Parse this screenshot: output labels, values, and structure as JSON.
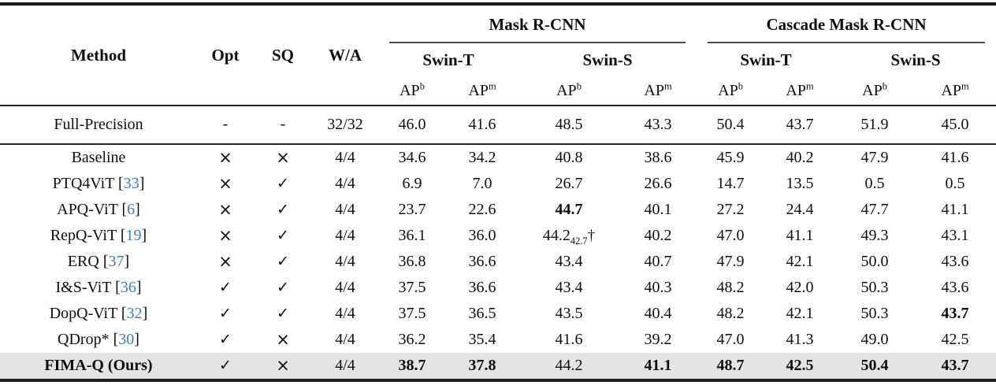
{
  "columns": {
    "method": "Method",
    "opt": "Opt",
    "sq": "SQ",
    "wa": "W/A"
  },
  "groups": [
    {
      "label": "Mask R-CNN"
    },
    {
      "label": "Cascade Mask R-CNN"
    }
  ],
  "backbones": [
    "Swin-T",
    "Swin-S",
    "Swin-T",
    "Swin-S"
  ],
  "metric": {
    "base": "AP",
    "sups": [
      "b",
      "m"
    ]
  },
  "marks": {
    "check": "✓",
    "cross": "×",
    "dash": "-"
  },
  "colors": {
    "citation": "#3d7dbf",
    "highlight_bg": "#e4e4e4"
  },
  "rows": [
    {
      "method": "Full-Precision",
      "opt": "dash",
      "sq": "dash",
      "wa": "32/32",
      "section": "fp",
      "cells": [
        {
          "v": "46.0"
        },
        {
          "v": "41.6"
        },
        {
          "v": "48.5"
        },
        {
          "v": "43.3"
        },
        {
          "v": "50.4"
        },
        {
          "v": "43.7"
        },
        {
          "v": "51.9"
        },
        {
          "v": "45.0"
        }
      ]
    },
    {
      "method": "Baseline",
      "opt": "cross",
      "sq": "cross",
      "wa": "4/4",
      "cells": [
        {
          "v": "34.6"
        },
        {
          "v": "34.2"
        },
        {
          "v": "40.8"
        },
        {
          "v": "38.6"
        },
        {
          "v": "45.9"
        },
        {
          "v": "40.2"
        },
        {
          "v": "47.9"
        },
        {
          "v": "41.6"
        }
      ]
    },
    {
      "method": "PTQ4ViT",
      "ref": "33",
      "opt": "cross",
      "sq": "check",
      "wa": "4/4",
      "cells": [
        {
          "v": "6.9"
        },
        {
          "v": "7.0"
        },
        {
          "v": "26.7"
        },
        {
          "v": "26.6"
        },
        {
          "v": "14.7"
        },
        {
          "v": "13.5"
        },
        {
          "v": "0.5"
        },
        {
          "v": "0.5"
        }
      ]
    },
    {
      "method": "APQ-ViT",
      "ref": "6",
      "opt": "cross",
      "sq": "check",
      "wa": "4/4",
      "cells": [
        {
          "v": "23.7"
        },
        {
          "v": "22.6"
        },
        {
          "v": "44.7",
          "bold": true
        },
        {
          "v": "40.1"
        },
        {
          "v": "27.2"
        },
        {
          "v": "24.4"
        },
        {
          "v": "47.7"
        },
        {
          "v": "41.1"
        }
      ]
    },
    {
      "method": "RepQ-ViT",
      "ref": "19",
      "opt": "cross",
      "sq": "check",
      "wa": "4/4",
      "cells": [
        {
          "v": "36.1"
        },
        {
          "v": "36.0"
        },
        {
          "v": "44.2",
          "sub": "42.7",
          "dagger": "†"
        },
        {
          "v": "40.2"
        },
        {
          "v": "47.0"
        },
        {
          "v": "41.1"
        },
        {
          "v": "49.3"
        },
        {
          "v": "43.1"
        }
      ]
    },
    {
      "method": "ERQ",
      "ref": "37",
      "opt": "cross",
      "sq": "check",
      "wa": "4/4",
      "cells": [
        {
          "v": "36.8"
        },
        {
          "v": "36.6"
        },
        {
          "v": "43.4"
        },
        {
          "v": "40.7"
        },
        {
          "v": "47.9"
        },
        {
          "v": "42.1"
        },
        {
          "v": "50.0"
        },
        {
          "v": "43.6"
        }
      ]
    },
    {
      "method": "I&S-ViT",
      "ref": "36",
      "opt": "check",
      "sq": "check",
      "wa": "4/4",
      "cells": [
        {
          "v": "37.5"
        },
        {
          "v": "36.6"
        },
        {
          "v": "43.4"
        },
        {
          "v": "40.3"
        },
        {
          "v": "48.2"
        },
        {
          "v": "42.0"
        },
        {
          "v": "50.3"
        },
        {
          "v": "43.6"
        }
      ]
    },
    {
      "method": "DopQ-ViT",
      "ref": "32",
      "opt": "check",
      "sq": "check",
      "wa": "4/4",
      "cells": [
        {
          "v": "37.5"
        },
        {
          "v": "36.5"
        },
        {
          "v": "43.5"
        },
        {
          "v": "40.4"
        },
        {
          "v": "48.2"
        },
        {
          "v": "42.1"
        },
        {
          "v": "50.3"
        },
        {
          "v": "43.7",
          "bold": true
        }
      ]
    },
    {
      "method": "QDrop*",
      "ref": "30",
      "opt": "check",
      "sq": "cross",
      "wa": "4/4",
      "cells": [
        {
          "v": "36.2"
        },
        {
          "v": "35.4"
        },
        {
          "v": "41.6"
        },
        {
          "v": "39.2"
        },
        {
          "v": "47.0"
        },
        {
          "v": "41.3"
        },
        {
          "v": "49.0"
        },
        {
          "v": "42.5"
        }
      ]
    },
    {
      "method": "FIMA-Q (Ours)",
      "opt": "check",
      "sq": "cross",
      "wa": "4/4",
      "bold": true,
      "highlight": true,
      "cells": [
        {
          "v": "38.7",
          "bold": true
        },
        {
          "v": "37.8",
          "bold": true
        },
        {
          "v": "44.2"
        },
        {
          "v": "41.1",
          "bold": true
        },
        {
          "v": "48.7",
          "bold": true
        },
        {
          "v": "42.5",
          "bold": true
        },
        {
          "v": "50.4",
          "bold": true
        },
        {
          "v": "43.7",
          "bold": true
        }
      ]
    }
  ]
}
